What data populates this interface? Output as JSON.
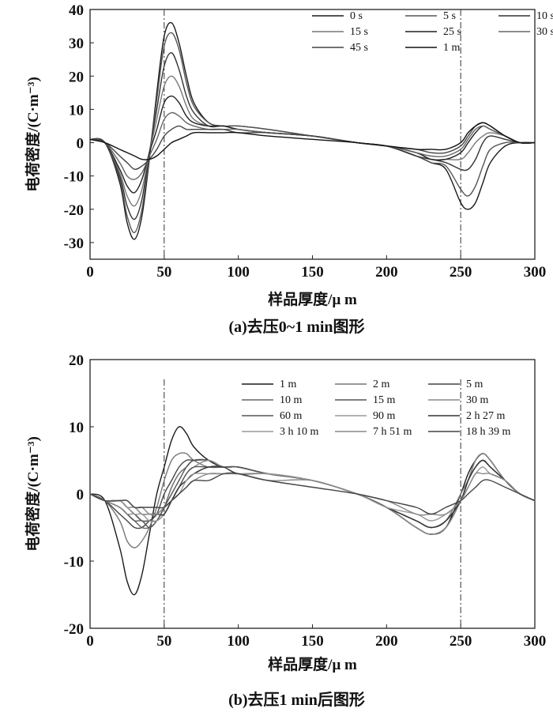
{
  "chart_data": [
    {
      "type": "line",
      "caption": "(a)去压0~1 min图形",
      "xlabel": "样品厚度/μ m",
      "ylabel": "电荷密度/(C·m⁻³)",
      "xlim": [
        0,
        300
      ],
      "ylim": [
        -35,
        40
      ],
      "xticks": [
        0,
        50,
        100,
        150,
        200,
        250,
        300
      ],
      "yticks": [
        -30,
        -20,
        -10,
        0,
        10,
        20,
        30,
        40
      ],
      "reference_lines_x": [
        50,
        250
      ],
      "legend_placement": "top-right",
      "x": [
        0,
        10,
        20,
        25,
        30,
        35,
        40,
        45,
        50,
        55,
        60,
        65,
        70,
        80,
        90,
        100,
        120,
        150,
        180,
        200,
        220,
        230,
        240,
        250,
        255,
        260,
        265,
        270,
        280,
        290,
        300
      ],
      "series": [
        {
          "name": "0 s",
          "color": "#1a1a1a",
          "values": [
            1,
            0,
            -12,
            -24,
            -29,
            -22,
            -5,
            15,
            32,
            36,
            30,
            20,
            12,
            6,
            5,
            5,
            4,
            2,
            0,
            -1,
            -4,
            -6,
            -8,
            -18,
            -20,
            -18,
            -12,
            -6,
            -1,
            0,
            0
          ]
        },
        {
          "name": "5 s",
          "color": "#555555",
          "values": [
            1,
            0,
            -11,
            -22,
            -27,
            -20,
            -4,
            13,
            29,
            33,
            28,
            18,
            11,
            6,
            5,
            5,
            4,
            2,
            0,
            -1,
            -4,
            -6,
            -7,
            -14,
            -16,
            -13,
            -7,
            -2,
            0,
            0,
            0
          ]
        },
        {
          "name": "10 s",
          "color": "#333333",
          "values": [
            1,
            0,
            -10,
            -19,
            -23,
            -17,
            -3,
            10,
            23,
            27,
            22,
            14,
            9,
            5,
            5,
            4,
            3,
            2,
            0,
            -1,
            -4,
            -5,
            -6,
            -8,
            -8,
            -5,
            0,
            2,
            1,
            0,
            0
          ]
        },
        {
          "name": "15 s",
          "color": "#777777",
          "values": [
            1,
            0,
            -9,
            -16,
            -19,
            -14,
            -3,
            7,
            17,
            20,
            17,
            11,
            7,
            5,
            5,
            4,
            3,
            2,
            0,
            -1,
            -3,
            -5,
            -5,
            -5,
            -3,
            0,
            2,
            3,
            2,
            0,
            0
          ]
        },
        {
          "name": "25 s",
          "color": "#222222",
          "values": [
            1,
            0,
            -8,
            -13,
            -15,
            -11,
            -3,
            4,
            12,
            14,
            12,
            8,
            6,
            5,
            5,
            4,
            3,
            2,
            0,
            -1,
            -3,
            -5,
            -5,
            -3,
            0,
            3,
            5,
            4,
            2,
            0,
            0
          ]
        },
        {
          "name": "30 s",
          "color": "#666666",
          "values": [
            1,
            0,
            -6,
            -10,
            -11,
            -9,
            -4,
            1,
            7,
            9,
            8,
            6,
            5,
            4,
            4,
            4,
            3,
            2,
            0,
            -1,
            -3,
            -4,
            -4,
            -2,
            1,
            4,
            5,
            4,
            2,
            0,
            0
          ]
        },
        {
          "name": "45 s",
          "color": "#444444",
          "values": [
            1,
            0,
            -4,
            -6,
            -8,
            -7,
            -5,
            -2,
            2,
            4,
            5,
            4,
            4,
            4,
            4,
            3,
            3,
            2,
            0,
            -1,
            -2,
            -3,
            -3,
            -1,
            2,
            5,
            6,
            5,
            2,
            0,
            0
          ]
        },
        {
          "name": "1 m",
          "color": "#111111",
          "values": [
            1,
            0,
            -2,
            -3,
            -4,
            -5,
            -5,
            -4,
            -2,
            0,
            1,
            2,
            3,
            3,
            3,
            3,
            2,
            1,
            0,
            -1,
            -2,
            -2,
            -2,
            0,
            3,
            5,
            6,
            5,
            2,
            0,
            0
          ]
        }
      ]
    },
    {
      "type": "line",
      "caption": "(b)去压1 min后图形",
      "xlabel": "样品厚度/μ m",
      "ylabel": "电荷密度/(C·m⁻³)",
      "xlim": [
        0,
        300
      ],
      "ylim": [
        -20,
        20
      ],
      "xticks": [
        0,
        50,
        100,
        150,
        200,
        250,
        300
      ],
      "yticks": [
        -20,
        -10,
        0,
        10,
        20
      ],
      "reference_lines_x": [
        50,
        250
      ],
      "legend_placement": "top-right",
      "x": [
        0,
        10,
        20,
        25,
        30,
        35,
        40,
        45,
        50,
        55,
        60,
        65,
        70,
        80,
        90,
        100,
        120,
        150,
        180,
        200,
        220,
        230,
        240,
        250,
        255,
        260,
        265,
        270,
        280,
        290,
        300
      ],
      "series": [
        {
          "name": "1 m",
          "color": "#1a1a1a",
          "values": [
            0,
            -1,
            -8,
            -13,
            -15,
            -12,
            -6,
            0,
            4,
            8,
            10,
            9,
            7,
            5,
            4,
            4,
            3,
            2,
            0,
            -2,
            -5,
            -6,
            -5,
            0,
            3,
            5,
            6,
            5,
            2,
            0,
            -1
          ]
        },
        {
          "name": "2 m",
          "color": "#777777",
          "values": [
            0,
            -1,
            -4,
            -7,
            -8,
            -7,
            -5,
            -2,
            2,
            5,
            6,
            6,
            5,
            4,
            4,
            4,
            3,
            2,
            0,
            -2,
            -4,
            -5,
            -4,
            0,
            2,
            4,
            5,
            4,
            2,
            0,
            -1
          ]
        },
        {
          "name": "5 m",
          "color": "#444444",
          "values": [
            0,
            -1,
            -3,
            -4,
            -5,
            -5,
            -4,
            -3,
            0,
            2,
            4,
            5,
            5,
            5,
            4,
            4,
            3,
            2,
            0,
            -2,
            -5,
            -6,
            -5,
            -1,
            2,
            4,
            5,
            4,
            2,
            0,
            -1
          ]
        },
        {
          "name": "10 m",
          "color": "#666666",
          "values": [
            0,
            -1,
            -2,
            -3,
            -4,
            -5,
            -5,
            -4,
            -2,
            1,
            3,
            4,
            5,
            5,
            4,
            4,
            3,
            2,
            0,
            -2,
            -5,
            -6,
            -5,
            -1,
            2,
            5,
            6,
            5,
            2,
            0,
            -1
          ]
        },
        {
          "name": "15 m",
          "color": "#555555",
          "values": [
            0,
            -1,
            -2,
            -3,
            -4,
            -4,
            -5,
            -4,
            -2,
            0,
            2,
            4,
            5,
            5,
            4,
            4,
            3,
            2,
            0,
            -2,
            -5,
            -6,
            -5,
            -1,
            2,
            5,
            6,
            5,
            2,
            0,
            -1
          ]
        },
        {
          "name": "30 m",
          "color": "#888888",
          "values": [
            0,
            -1,
            -2,
            -3,
            -3,
            -4,
            -4,
            -4,
            -3,
            -1,
            1,
            3,
            4,
            5,
            4,
            4,
            3,
            2,
            0,
            -2,
            -5,
            -6,
            -5,
            -1,
            2,
            5,
            6,
            5,
            2,
            0,
            -1
          ]
        },
        {
          "name": "60 m",
          "color": "#555555",
          "values": [
            0,
            -1,
            -1,
            -2,
            -3,
            -4,
            -4,
            -4,
            -3,
            -1,
            1,
            3,
            4,
            4,
            4,
            4,
            3,
            2,
            0,
            -2,
            -4,
            -5,
            -4,
            -1,
            2,
            4,
            5,
            4,
            2,
            0,
            -1
          ]
        },
        {
          "name": "90 m",
          "color": "#999999",
          "values": [
            0,
            -1,
            -1,
            -2,
            -3,
            -3,
            -4,
            -4,
            -3,
            -1,
            1,
            2,
            3,
            4,
            4,
            3,
            3,
            2,
            0,
            -2,
            -4,
            -5,
            -4,
            -1,
            2,
            4,
            5,
            4,
            2,
            0,
            -1
          ]
        },
        {
          "name": "2 h 27 m",
          "color": "#333333",
          "values": [
            0,
            -1,
            -1,
            -2,
            -2,
            -3,
            -3,
            -3,
            -3,
            -1,
            1,
            2,
            3,
            4,
            4,
            3,
            3,
            2,
            0,
            -2,
            -4,
            -5,
            -4,
            -1,
            2,
            4,
            5,
            4,
            2,
            0,
            -1
          ]
        },
        {
          "name": "3 h 10 m",
          "color": "#999999",
          "values": [
            0,
            -1,
            -1,
            -2,
            -2,
            -3,
            -3,
            -3,
            -2,
            -1,
            0,
            2,
            3,
            3,
            3,
            3,
            3,
            2,
            0,
            -2,
            -3,
            -4,
            -3,
            -1,
            1,
            3,
            4,
            3,
            2,
            0,
            -1
          ]
        },
        {
          "name": "7 h 51 m",
          "color": "#888888",
          "values": [
            0,
            -1,
            -1,
            -1,
            -2,
            -2,
            -3,
            -3,
            -2,
            -1,
            0,
            1,
            2,
            3,
            3,
            3,
            2,
            2,
            0,
            -1,
            -3,
            -3,
            -3,
            -1,
            1,
            3,
            3,
            3,
            2,
            0,
            -1
          ]
        },
        {
          "name": "18 h 39 m",
          "color": "#444444",
          "values": [
            0,
            -1,
            -1,
            -1,
            -2,
            -2,
            -2,
            -2,
            -2,
            -1,
            0,
            1,
            2,
            2,
            3,
            3,
            2,
            1,
            0,
            -1,
            -2,
            -3,
            -2,
            -1,
            0,
            1,
            2,
            2,
            1,
            0,
            -1
          ]
        }
      ]
    }
  ]
}
